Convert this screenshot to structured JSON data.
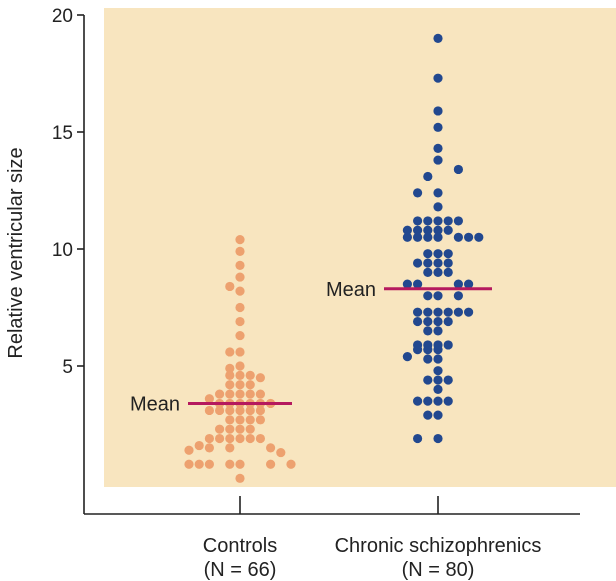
{
  "chart_data": {
    "type": "scatter",
    "title": "",
    "xlabel": "",
    "ylabel": "Relative ventricular size",
    "ylim": [
      0,
      20
    ],
    "yticks": [
      5,
      10,
      15,
      20
    ],
    "grid": false,
    "colors": {
      "background": "#f8e5bf",
      "controls": "#eda16f",
      "schizophrenics": "#22488f",
      "mean_line": "#b5195e",
      "axis": "#222222"
    },
    "mean_label": "Mean",
    "series": [
      {
        "name": "Controls",
        "category_label": [
          "Controls",
          "(N = 66)"
        ],
        "n_label": "(N = 66)",
        "mean": 3.4,
        "points": [
          {
            "dx": 0,
            "y": 10.4
          },
          {
            "dx": 0,
            "y": 9.9
          },
          {
            "dx": 0,
            "y": 9.3
          },
          {
            "dx": 0,
            "y": 8.8
          },
          {
            "dx": -1,
            "y": 8.4
          },
          {
            "dx": 0,
            "y": 8.2
          },
          {
            "dx": 0,
            "y": 7.5
          },
          {
            "dx": 0,
            "y": 6.9
          },
          {
            "dx": 0,
            "y": 6.3
          },
          {
            "dx": 0,
            "y": 5.6
          },
          {
            "dx": -1,
            "y": 5.6
          },
          {
            "dx": 0,
            "y": 5.0
          },
          {
            "dx": -1,
            "y": 4.9
          },
          {
            "dx": -1,
            "y": 4.6
          },
          {
            "dx": 0,
            "y": 4.6
          },
          {
            "dx": 1,
            "y": 4.6
          },
          {
            "dx": 2,
            "y": 4.5
          },
          {
            "dx": -1,
            "y": 4.2
          },
          {
            "dx": 0,
            "y": 4.2
          },
          {
            "dx": 1,
            "y": 4.2
          },
          {
            "dx": -2,
            "y": 3.8
          },
          {
            "dx": -1,
            "y": 3.8
          },
          {
            "dx": 0,
            "y": 3.8
          },
          {
            "dx": 1,
            "y": 3.8
          },
          {
            "dx": 2,
            "y": 3.8
          },
          {
            "dx": -3,
            "y": 3.6
          },
          {
            "dx": -2,
            "y": 3.4
          },
          {
            "dx": -1,
            "y": 3.4
          },
          {
            "dx": 0,
            "y": 3.4
          },
          {
            "dx": 1,
            "y": 3.4
          },
          {
            "dx": 2,
            "y": 3.4
          },
          {
            "dx": 3,
            "y": 3.4
          },
          {
            "dx": -3,
            "y": 3.1
          },
          {
            "dx": -2,
            "y": 3.1
          },
          {
            "dx": -1,
            "y": 3.1
          },
          {
            "dx": 0,
            "y": 3.1
          },
          {
            "dx": 1,
            "y": 3.1
          },
          {
            "dx": 2,
            "y": 3.1
          },
          {
            "dx": -1,
            "y": 2.7
          },
          {
            "dx": 0,
            "y": 2.7
          },
          {
            "dx": 1,
            "y": 2.7
          },
          {
            "dx": 2,
            "y": 2.7
          },
          {
            "dx": -2,
            "y": 2.3
          },
          {
            "dx": -1,
            "y": 2.3
          },
          {
            "dx": 0,
            "y": 2.3
          },
          {
            "dx": 1,
            "y": 2.3
          },
          {
            "dx": -3,
            "y": 1.9
          },
          {
            "dx": -2,
            "y": 1.9
          },
          {
            "dx": -1,
            "y": 1.9
          },
          {
            "dx": 0,
            "y": 1.9
          },
          {
            "dx": 1,
            "y": 1.9
          },
          {
            "dx": 2,
            "y": 1.9
          },
          {
            "dx": -4,
            "y": 1.6
          },
          {
            "dx": -3,
            "y": 1.5
          },
          {
            "dx": -1,
            "y": 1.5
          },
          {
            "dx": 3,
            "y": 1.5
          },
          {
            "dx": -5,
            "y": 1.4
          },
          {
            "dx": 4,
            "y": 1.3
          },
          {
            "dx": -5,
            "y": 0.8
          },
          {
            "dx": -4,
            "y": 0.8
          },
          {
            "dx": -3,
            "y": 0.8
          },
          {
            "dx": -1,
            "y": 0.8
          },
          {
            "dx": 0,
            "y": 0.8
          },
          {
            "dx": 3,
            "y": 0.8
          },
          {
            "dx": 5,
            "y": 0.8
          },
          {
            "dx": 0,
            "y": 0.2
          }
        ]
      },
      {
        "name": "Chronic schizophrenics",
        "category_label": [
          "Chronic schizophrenics",
          "(N = 80)"
        ],
        "n_label": "(N = 80)",
        "mean": 8.3,
        "points": [
          {
            "dx": 0,
            "y": 19.0
          },
          {
            "dx": 0,
            "y": 17.3
          },
          {
            "dx": 0,
            "y": 15.9
          },
          {
            "dx": 0,
            "y": 15.2
          },
          {
            "dx": 0,
            "y": 14.3
          },
          {
            "dx": 0,
            "y": 13.8
          },
          {
            "dx": 2,
            "y": 13.4
          },
          {
            "dx": -1,
            "y": 13.1
          },
          {
            "dx": -2,
            "y": 12.4
          },
          {
            "dx": 0,
            "y": 12.4
          },
          {
            "dx": 0,
            "y": 11.8
          },
          {
            "dx": -2,
            "y": 11.2
          },
          {
            "dx": -1,
            "y": 11.2
          },
          {
            "dx": 0,
            "y": 11.2
          },
          {
            "dx": 1,
            "y": 11.2
          },
          {
            "dx": 2,
            "y": 11.2
          },
          {
            "dx": -3,
            "y": 10.8
          },
          {
            "dx": -2,
            "y": 10.8
          },
          {
            "dx": -1,
            "y": 10.8
          },
          {
            "dx": 0,
            "y": 10.8
          },
          {
            "dx": 1,
            "y": 10.8
          },
          {
            "dx": -3,
            "y": 10.5
          },
          {
            "dx": -2,
            "y": 10.5
          },
          {
            "dx": -1,
            "y": 10.5
          },
          {
            "dx": 0,
            "y": 10.5
          },
          {
            "dx": 2,
            "y": 10.5
          },
          {
            "dx": 3,
            "y": 10.5
          },
          {
            "dx": 4,
            "y": 10.5
          },
          {
            "dx": -1,
            "y": 9.8
          },
          {
            "dx": 0,
            "y": 9.8
          },
          {
            "dx": 1,
            "y": 9.8
          },
          {
            "dx": -2,
            "y": 9.4
          },
          {
            "dx": -1,
            "y": 9.4
          },
          {
            "dx": 0,
            "y": 9.4
          },
          {
            "dx": 1,
            "y": 9.4
          },
          {
            "dx": -1,
            "y": 9.0
          },
          {
            "dx": 0,
            "y": 9.0
          },
          {
            "dx": 1,
            "y": 9.0
          },
          {
            "dx": -3,
            "y": 8.5
          },
          {
            "dx": -2,
            "y": 8.5
          },
          {
            "dx": 2,
            "y": 8.5
          },
          {
            "dx": 3,
            "y": 8.5
          },
          {
            "dx": -1,
            "y": 8.0
          },
          {
            "dx": 0,
            "y": 8.0
          },
          {
            "dx": 2,
            "y": 8.0
          },
          {
            "dx": -2,
            "y": 7.3
          },
          {
            "dx": -1,
            "y": 7.3
          },
          {
            "dx": 0,
            "y": 7.3
          },
          {
            "dx": 1,
            "y": 7.3
          },
          {
            "dx": 2,
            "y": 7.3
          },
          {
            "dx": 3,
            "y": 7.3
          },
          {
            "dx": -2,
            "y": 6.9
          },
          {
            "dx": -1,
            "y": 6.9
          },
          {
            "dx": 0,
            "y": 6.9
          },
          {
            "dx": 1,
            "y": 6.9
          },
          {
            "dx": -1,
            "y": 6.5
          },
          {
            "dx": 0,
            "y": 6.5
          },
          {
            "dx": -2,
            "y": 5.9
          },
          {
            "dx": -1,
            "y": 5.9
          },
          {
            "dx": 0,
            "y": 5.9
          },
          {
            "dx": 1,
            "y": 5.9
          },
          {
            "dx": -2,
            "y": 5.7
          },
          {
            "dx": -1,
            "y": 5.7
          },
          {
            "dx": 0,
            "y": 5.7
          },
          {
            "dx": -3,
            "y": 5.4
          },
          {
            "dx": -1,
            "y": 5.3
          },
          {
            "dx": 0,
            "y": 5.3
          },
          {
            "dx": 0,
            "y": 4.8
          },
          {
            "dx": -1,
            "y": 4.4
          },
          {
            "dx": 0,
            "y": 4.4
          },
          {
            "dx": 1,
            "y": 4.4
          },
          {
            "dx": 0,
            "y": 4.0
          },
          {
            "dx": -2,
            "y": 3.5
          },
          {
            "dx": -1,
            "y": 3.5
          },
          {
            "dx": 0,
            "y": 3.5
          },
          {
            "dx": 1,
            "y": 3.5
          },
          {
            "dx": -1,
            "y": 2.9
          },
          {
            "dx": 0,
            "y": 2.9
          },
          {
            "dx": -2,
            "y": 1.9
          },
          {
            "dx": 0,
            "y": 1.9
          }
        ]
      }
    ]
  }
}
